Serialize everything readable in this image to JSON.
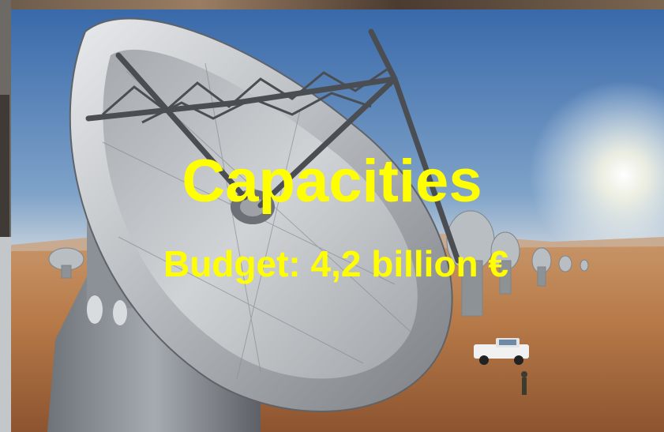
{
  "slide": {
    "title": "Capacities",
    "subtitle": "Budget: 4,2 billion €"
  },
  "colors": {
    "text": "#ffff00",
    "sky_top": "#3a6fb0",
    "sky_horizon": "#cfd8df",
    "desert": "#b3753f",
    "dish_metal": "#c9cdd1"
  },
  "photo": {
    "subject": "radio-telescope-array-in-desert"
  }
}
